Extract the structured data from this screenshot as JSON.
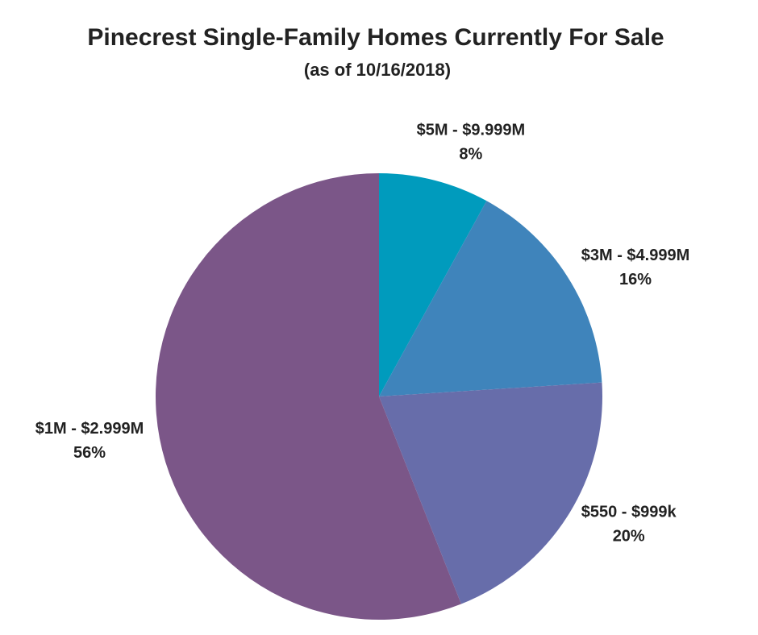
{
  "chart_data": {
    "type": "pie",
    "title": "Pinecrest Single-Family Homes Currently For Sale",
    "subtitle": "(as of 10/16/2018)",
    "categories": [
      "$5M - $9.999M",
      "$3M - $4.999M",
      "$550 - $999k",
      "$1M - $2.999M"
    ],
    "values": [
      8,
      16,
      20,
      56
    ],
    "value_labels": [
      "8%",
      "16%",
      "20%",
      "56%"
    ],
    "colors": [
      "#009bbd",
      "#3f84bb",
      "#676daa",
      "#7b5688"
    ]
  }
}
